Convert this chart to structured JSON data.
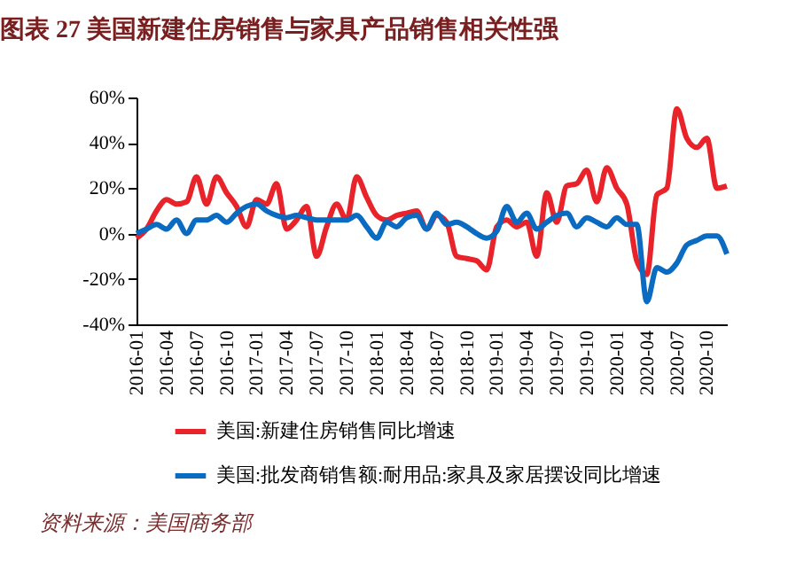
{
  "chart_data": {
    "type": "line",
    "title": "图表 27    美国新建住房销售与家具产品销售相关性强",
    "categories": [
      "2016-01",
      null,
      null,
      "2016-04",
      null,
      null,
      "2016-07",
      null,
      null,
      "2016-10",
      null,
      null,
      "2017-01",
      null,
      null,
      "2017-04",
      null,
      null,
      "2017-07",
      null,
      null,
      "2017-10",
      null,
      null,
      "2018-01",
      null,
      null,
      "2018-04",
      null,
      null,
      "2018-07",
      null,
      null,
      "2018-10",
      null,
      null,
      "2019-01",
      null,
      null,
      "2019-04",
      null,
      null,
      "2019-07",
      null,
      null,
      "2019-10",
      null,
      null,
      "2020-01",
      null,
      null,
      "2020-04",
      null,
      null,
      "2020-07",
      null,
      null,
      "2020-10",
      null,
      null
    ],
    "series": [
      {
        "name": "美国:新建住房销售同比增速",
        "color": "#e8232a",
        "values": [
          -2,
          2,
          10,
          15,
          13,
          14,
          25,
          13,
          25,
          18,
          12,
          3,
          15,
          13,
          22,
          2,
          6,
          12,
          -10,
          3,
          13,
          6,
          25,
          16,
          8,
          6,
          8,
          9,
          10,
          2,
          8,
          5,
          -10,
          -11,
          -12,
          -16,
          3,
          6,
          3,
          5,
          -10,
          18,
          5,
          21,
          22,
          28,
          14,
          29,
          20,
          13,
          -12,
          -18,
          17,
          20,
          55,
          42,
          38,
          42,
          20,
          21
        ]
      },
      {
        "name": "美国:批发商销售额:耐用品:家具及家居摆设同比增速",
        "color": "#0a6bc0",
        "values": [
          0,
          2,
          4,
          2,
          6,
          0,
          6,
          6,
          8,
          5,
          9,
          12,
          13,
          10,
          8,
          7,
          8,
          7,
          6,
          6,
          6,
          6,
          8,
          3,
          -2,
          5,
          3,
          7,
          8,
          2,
          9,
          4,
          5,
          3,
          0,
          -2,
          1,
          12,
          5,
          9,
          2,
          5,
          8,
          9,
          3,
          7,
          5,
          3,
          7,
          4,
          4,
          -30,
          -15,
          -17,
          -13,
          -5,
          -3,
          -1,
          -1,
          -9
        ]
      }
    ],
    "ylim": [
      -40,
      60
    ],
    "yticks": [
      {
        "value": -40,
        "label": "-40%"
      },
      {
        "value": -20,
        "label": "-20%"
      },
      {
        "value": 0,
        "label": "0%"
      },
      {
        "value": 20,
        "label": "20%"
      },
      {
        "value": 40,
        "label": "40%"
      },
      {
        "value": 60,
        "label": "60%"
      }
    ],
    "grid": false,
    "legend": "bottom",
    "line_style": "solid",
    "marker": "none",
    "annotations": [
      "资料来源：美国商务部"
    ]
  }
}
